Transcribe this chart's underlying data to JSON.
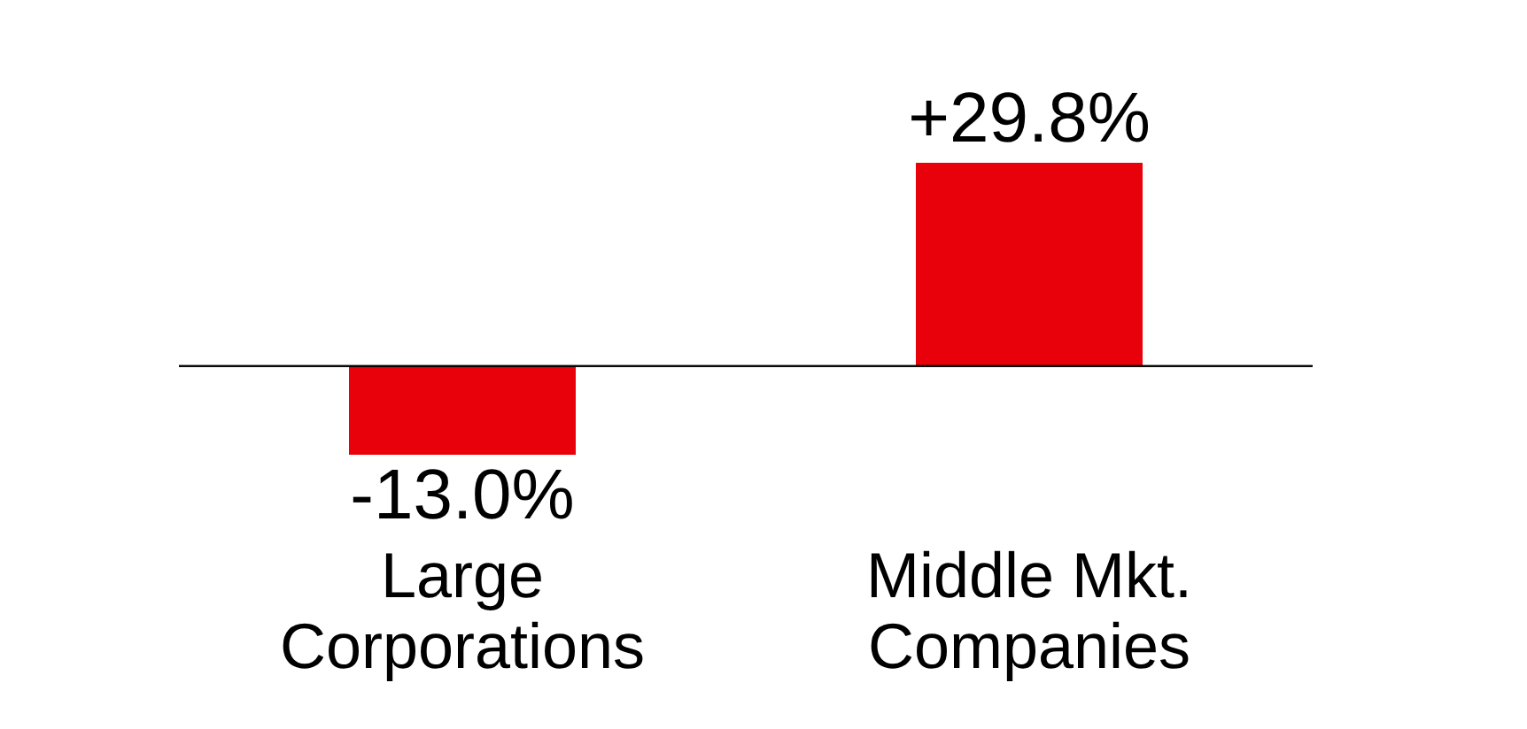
{
  "chart_data": {
    "type": "bar",
    "categories": [
      "Large Corporations",
      "Middle Mkt. Companies"
    ],
    "values": [
      -13.0,
      29.8
    ],
    "value_labels": [
      "-13.0%",
      "+29.8%"
    ],
    "colors": [
      "#e8000b",
      "#e8000b"
    ]
  }
}
